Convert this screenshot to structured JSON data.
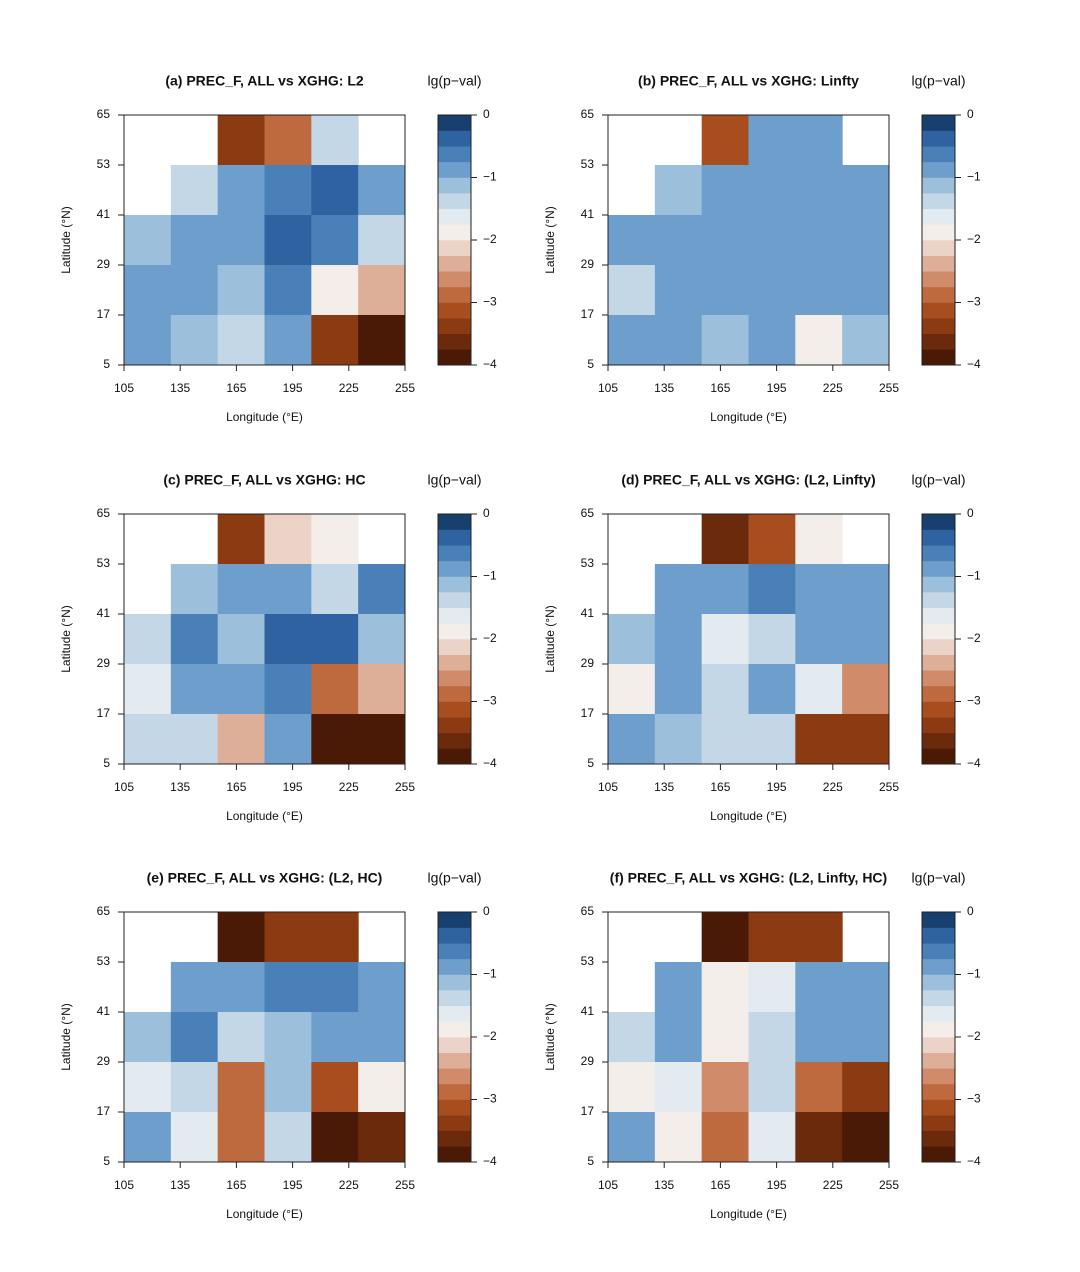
{
  "chart_data": [
    {
      "type": "heatmap",
      "title": "(a) PREC_F, ALL vs XGHG: L2",
      "xlabel": "Longitude (°E)",
      "ylabel": "Latitude (°N)",
      "colorbar_label": "lg(p−val)",
      "xlim": [
        105,
        255
      ],
      "ylim": [
        5,
        65
      ],
      "xticks": [
        105,
        135,
        165,
        195,
        225,
        255
      ],
      "yticks": [
        5,
        17,
        29,
        41,
        53,
        65
      ],
      "zlim": [
        -4,
        0
      ],
      "zticks": [
        {
          "value": 0,
          "label": "0"
        },
        {
          "value": -1,
          "label": "−1"
        },
        {
          "value": -2,
          "label": "−2"
        },
        {
          "value": -3,
          "label": "−3"
        },
        {
          "value": -4,
          "label": "−4"
        }
      ],
      "colormap": [
        "#4a1a06",
        "#6b2a0c",
        "#8c3a12",
        "#a84e1e",
        "#bf6a3e",
        "#cf8b6a",
        "#deaf98",
        "#ecd3c7",
        "#f4eeea",
        "#e3ebf1",
        "#c3d7e6",
        "#9cbfdc",
        "#6e9fcc",
        "#4a80b8",
        "#2e62a0",
        "#17406f"
      ],
      "z": [
        [
          null,
          null,
          -3.5,
          -3.0,
          -1.5,
          null
        ],
        [
          null,
          -1.3,
          -0.8,
          -0.6,
          -0.5,
          -0.9
        ],
        [
          -1.2,
          -1.0,
          -0.8,
          -0.5,
          -0.6,
          -1.5
        ],
        [
          -1.0,
          -0.9,
          -1.2,
          -0.7,
          -1.8,
          -2.5
        ],
        [
          -0.9,
          -1.2,
          -1.4,
          -1.0,
          -3.5,
          -3.8
        ]
      ]
    },
    {
      "type": "heatmap",
      "title": "(b) PREC_F, ALL vs XGHG: Linfty",
      "xlabel": "Longitude (°E)",
      "ylabel": "Latitude (°N)",
      "colorbar_label": "lg(p−val)",
      "xlim": [
        105,
        255
      ],
      "ylim": [
        5,
        65
      ],
      "xticks": [
        105,
        135,
        165,
        195,
        225,
        255
      ],
      "yticks": [
        5,
        17,
        29,
        41,
        53,
        65
      ],
      "zlim": [
        -4,
        0
      ],
      "zticks": [
        {
          "value": 0,
          "label": "0"
        },
        {
          "value": -1,
          "label": "−1"
        },
        {
          "value": -2,
          "label": "−2"
        },
        {
          "value": -3,
          "label": "−3"
        },
        {
          "value": -4,
          "label": "−4"
        }
      ],
      "colormap": [
        "#4a1a06",
        "#6b2a0c",
        "#8c3a12",
        "#a84e1e",
        "#bf6a3e",
        "#cf8b6a",
        "#deaf98",
        "#ecd3c7",
        "#f4eeea",
        "#e3ebf1",
        "#c3d7e6",
        "#9cbfdc",
        "#6e9fcc",
        "#4a80b8",
        "#2e62a0",
        "#17406f"
      ],
      "z": [
        [
          null,
          null,
          -3.2,
          -1.0,
          -0.9,
          null
        ],
        [
          null,
          -1.1,
          -0.9,
          -0.8,
          -0.8,
          -1.0
        ],
        [
          -1.0,
          -0.8,
          -0.9,
          -0.9,
          -0.9,
          -1.0
        ],
        [
          -1.5,
          -0.9,
          -0.8,
          -0.9,
          -0.8,
          -0.9
        ],
        [
          -0.8,
          -0.9,
          -1.1,
          -0.9,
          -1.8,
          -1.2
        ]
      ]
    },
    {
      "type": "heatmap",
      "title": "(c) PREC_F, ALL vs XGHG: HC",
      "xlabel": "Longitude (°E)",
      "ylabel": "Latitude (°N)",
      "colorbar_label": "lg(p−val)",
      "xlim": [
        105,
        255
      ],
      "ylim": [
        5,
        65
      ],
      "xticks": [
        105,
        135,
        165,
        195,
        225,
        255
      ],
      "yticks": [
        5,
        17,
        29,
        41,
        53,
        65
      ],
      "zlim": [
        -4,
        0
      ],
      "zticks": [
        {
          "value": 0,
          "label": "0"
        },
        {
          "value": -1,
          "label": "−1"
        },
        {
          "value": -2,
          "label": "−2"
        },
        {
          "value": -3,
          "label": "−3"
        },
        {
          "value": -4,
          "label": "−4"
        }
      ],
      "colormap": [
        "#4a1a06",
        "#6b2a0c",
        "#8c3a12",
        "#a84e1e",
        "#bf6a3e",
        "#cf8b6a",
        "#deaf98",
        "#ecd3c7",
        "#f4eeea",
        "#e3ebf1",
        "#c3d7e6",
        "#9cbfdc",
        "#6e9fcc",
        "#4a80b8",
        "#2e62a0",
        "#17406f"
      ],
      "z": [
        [
          null,
          null,
          -3.5,
          -2.2,
          -2.0,
          null
        ],
        [
          null,
          -1.2,
          -1.0,
          -0.8,
          -1.5,
          -0.6
        ],
        [
          -1.3,
          -0.7,
          -1.2,
          -0.5,
          -0.5,
          -1.2
        ],
        [
          -1.6,
          -1.0,
          -1.0,
          -0.6,
          -2.8,
          -2.5
        ],
        [
          -1.4,
          -1.3,
          -2.5,
          -0.9,
          -3.8,
          -3.8
        ]
      ]
    },
    {
      "type": "heatmap",
      "title": "(d) PREC_F, ALL vs XGHG: (L2, Linfty)",
      "xlabel": "Longitude (°E)",
      "ylabel": "Latitude (°N)",
      "colorbar_label": "lg(p−val)",
      "xlim": [
        105,
        255
      ],
      "ylim": [
        5,
        65
      ],
      "xticks": [
        105,
        135,
        165,
        195,
        225,
        255
      ],
      "yticks": [
        5,
        17,
        29,
        41,
        53,
        65
      ],
      "zlim": [
        -4,
        0
      ],
      "zticks": [
        {
          "value": 0,
          "label": "0"
        },
        {
          "value": -1,
          "label": "−1"
        },
        {
          "value": -2,
          "label": "−2"
        },
        {
          "value": -3,
          "label": "−3"
        },
        {
          "value": -4,
          "label": "−4"
        }
      ],
      "colormap": [
        "#4a1a06",
        "#6b2a0c",
        "#8c3a12",
        "#a84e1e",
        "#bf6a3e",
        "#cf8b6a",
        "#deaf98",
        "#ecd3c7",
        "#f4eeea",
        "#e3ebf1",
        "#c3d7e6",
        "#9cbfdc",
        "#6e9fcc",
        "#4a80b8",
        "#2e62a0",
        "#17406f"
      ],
      "z": [
        [
          null,
          null,
          -3.6,
          -3.2,
          -2.0,
          null
        ],
        [
          null,
          -1.0,
          -0.9,
          -0.6,
          -0.8,
          -0.9
        ],
        [
          -1.1,
          -0.8,
          -1.6,
          -1.4,
          -0.9,
          -1.0
        ],
        [
          -2.0,
          -0.9,
          -1.3,
          -1.0,
          -1.6,
          -2.6
        ],
        [
          -1.0,
          -1.2,
          -1.5,
          -1.4,
          -3.3,
          -3.5
        ]
      ]
    },
    {
      "type": "heatmap",
      "title": "(e) PREC_F, ALL vs XGHG: (L2, HC)",
      "xlabel": "Longitude (°E)",
      "ylabel": "Latitude (°N)",
      "colorbar_label": "lg(p−val)",
      "xlim": [
        105,
        255
      ],
      "ylim": [
        5,
        65
      ],
      "xticks": [
        105,
        135,
        165,
        195,
        225,
        255
      ],
      "yticks": [
        5,
        17,
        29,
        41,
        53,
        65
      ],
      "zlim": [
        -4,
        0
      ],
      "zticks": [
        {
          "value": 0,
          "label": "0"
        },
        {
          "value": -1,
          "label": "−1"
        },
        {
          "value": -2,
          "label": "−2"
        },
        {
          "value": -3,
          "label": "−3"
        },
        {
          "value": -4,
          "label": "−4"
        }
      ],
      "colormap": [
        "#4a1a06",
        "#6b2a0c",
        "#8c3a12",
        "#a84e1e",
        "#bf6a3e",
        "#cf8b6a",
        "#deaf98",
        "#ecd3c7",
        "#f4eeea",
        "#e3ebf1",
        "#c3d7e6",
        "#9cbfdc",
        "#6e9fcc",
        "#4a80b8",
        "#2e62a0",
        "#17406f"
      ],
      "z": [
        [
          null,
          null,
          -3.8,
          -3.3,
          -3.5,
          null
        ],
        [
          null,
          -0.8,
          -0.9,
          -0.6,
          -0.7,
          -0.8
        ],
        [
          -1.2,
          -0.7,
          -1.5,
          -1.2,
          -1.0,
          -0.9
        ],
        [
          -1.6,
          -1.5,
          -2.8,
          -1.2,
          -3.2,
          -2.0
        ],
        [
          -0.9,
          -1.6,
          -3.0,
          -1.3,
          -3.8,
          -3.7
        ]
      ]
    },
    {
      "type": "heatmap",
      "title": "(f) PREC_F, ALL vs XGHG: (L2, Linfty, HC)",
      "xlabel": "Longitude (°E)",
      "ylabel": "Latitude (°N)",
      "colorbar_label": "lg(p−val)",
      "xlim": [
        105,
        255
      ],
      "ylim": [
        5,
        65
      ],
      "xticks": [
        105,
        135,
        165,
        195,
        225,
        255
      ],
      "yticks": [
        5,
        17,
        29,
        41,
        53,
        65
      ],
      "zlim": [
        -4,
        0
      ],
      "zticks": [
        {
          "value": 0,
          "label": "0"
        },
        {
          "value": -1,
          "label": "−1"
        },
        {
          "value": -2,
          "label": "−2"
        },
        {
          "value": -3,
          "label": "−3"
        },
        {
          "value": -4,
          "label": "−4"
        }
      ],
      "colormap": [
        "#4a1a06",
        "#6b2a0c",
        "#8c3a12",
        "#a84e1e",
        "#bf6a3e",
        "#cf8b6a",
        "#deaf98",
        "#ecd3c7",
        "#f4eeea",
        "#e3ebf1",
        "#c3d7e6",
        "#9cbfdc",
        "#6e9fcc",
        "#4a80b8",
        "#2e62a0",
        "#17406f"
      ],
      "z": [
        [
          null,
          null,
          -3.8,
          -3.5,
          -3.5,
          null
        ],
        [
          null,
          -0.9,
          -2.0,
          -1.6,
          -0.8,
          -0.9
        ],
        [
          -1.3,
          -0.8,
          -1.8,
          -1.5,
          -1.0,
          -0.9
        ],
        [
          -1.8,
          -1.7,
          -2.6,
          -1.3,
          -3.0,
          -3.5
        ],
        [
          -0.9,
          -1.8,
          -3.0,
          -1.6,
          -3.7,
          -3.8
        ]
      ]
    }
  ]
}
